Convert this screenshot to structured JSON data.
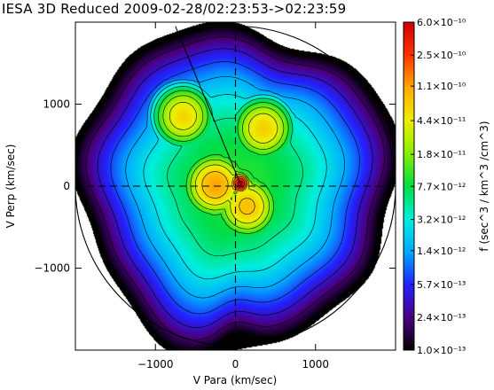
{
  "chart_data": {
    "type": "heatmap",
    "title": "IESA 3D Reduced 2009-02-28/02:23:53->02:23:59",
    "xlabel": "V Para (km/sec)",
    "ylabel": "V Perp (km/sec)",
    "xlim": [
      -2000,
      2000
    ],
    "ylim": [
      -2000,
      2000
    ],
    "x_ticks": [
      -1000,
      0,
      1000
    ],
    "x_tick_labels": [
      "−1000",
      "0",
      "1000"
    ],
    "y_ticks": [
      -1000,
      0,
      1000
    ],
    "y_tick_labels": [
      "−1000",
      "0",
      "1000"
    ],
    "zero_lines": "dashed",
    "colorbar": {
      "label": "f (sec^3 / km^3 /cm^3)",
      "scale": "log",
      "range": [
        1e-13,
        6e-10
      ],
      "tick_values": [
        6e-10,
        2.5e-10,
        1.1e-10,
        4.4e-11,
        1.8e-11,
        7.7e-12,
        3.2e-12,
        1.4e-12,
        5.7e-13,
        2.4e-13,
        1e-13
      ],
      "tick_labels": [
        "6.0×10⁻¹⁰",
        "2.5×10⁻¹⁰",
        "1.1×10⁻¹⁰",
        "4.4×10⁻¹¹",
        "1.8×10⁻¹¹",
        "7.7×10⁻¹²",
        "3.2×10⁻¹²",
        "1.4×10⁻¹²",
        "5.7×10⁻¹³",
        "2.4×10⁻¹³",
        "1.0×10⁻¹³"
      ],
      "colors": [
        "#000000",
        "#4b0082",
        "#2222ff",
        "#00aaff",
        "#00eedd",
        "#00dd44",
        "#88ee00",
        "#eeee00",
        "#ffaa00",
        "#ff3300",
        "#cc0000"
      ]
    },
    "distribution": {
      "peak_value": 6e-10,
      "peak_center": [
        60,
        30
      ],
      "core_lobes": [
        {
          "center": [
            -650,
            850
          ],
          "value": 6e-11
        },
        {
          "center": [
            350,
            700
          ],
          "value": 6.5e-11
        },
        {
          "center": [
            -250,
            10
          ],
          "value": 1.1e-10
        },
        {
          "center": [
            150,
            -250
          ],
          "value": 8e-11
        }
      ],
      "outer_edge_value": 1e-13
    }
  }
}
